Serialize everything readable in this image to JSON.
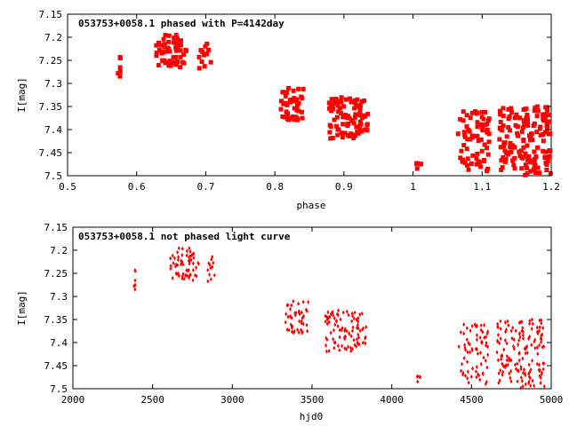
{
  "chart_data": [
    {
      "type": "scatter",
      "title": "053753+0058.1 phased with P=4142day",
      "xlabel": "phase",
      "ylabel": "I[mag]",
      "xlim": [
        0.5,
        1.2
      ],
      "ylim": [
        7.15,
        7.5
      ],
      "y_inverted": true,
      "xticks": [
        "0.5",
        "0.6",
        "0.7",
        "0.8",
        "0.9",
        "1",
        "1.1",
        "1.2"
      ],
      "yticks": [
        "7.15",
        "7.2",
        "7.25",
        "7.3",
        "7.35",
        "7.4",
        "7.45",
        "7.5"
      ],
      "marker": "filled-square",
      "color": "#ff0000",
      "clusters": [
        {
          "x": [
            0.572,
            0.578
          ],
          "y": [
            7.225,
            7.285
          ],
          "n": 6
        },
        {
          "x": [
            0.628,
            0.672
          ],
          "y": [
            7.195,
            7.265
          ],
          "n": 60
        },
        {
          "x": [
            0.688,
            0.708
          ],
          "y": [
            7.205,
            7.275
          ],
          "n": 12
        },
        {
          "x": [
            0.808,
            0.842
          ],
          "y": [
            7.31,
            7.38
          ],
          "n": 45
        },
        {
          "x": [
            0.878,
            0.935
          ],
          "y": [
            7.33,
            7.42
          ],
          "n": 90
        },
        {
          "x": [
            1.002,
            1.012
          ],
          "y": [
            7.46,
            7.49
          ],
          "n": 5
        },
        {
          "x": [
            1.065,
            1.112
          ],
          "y": [
            7.36,
            7.49
          ],
          "n": 70
        },
        {
          "x": [
            1.125,
            1.2
          ],
          "y": [
            7.35,
            7.5
          ],
          "n": 150
        }
      ]
    },
    {
      "type": "scatter",
      "title": "053753+0058.1 not phased light curve",
      "xlabel": "hjd0",
      "ylabel": "I[mag]",
      "xlim": [
        2000,
        5000
      ],
      "ylim": [
        7.15,
        7.5
      ],
      "y_inverted": true,
      "xticks": [
        "2000",
        "2500",
        "3000",
        "3500",
        "4000",
        "4500",
        "5000"
      ],
      "yticks": [
        "7.15",
        "7.2",
        "7.25",
        "7.3",
        "7.35",
        "7.4",
        "7.45",
        "7.5"
      ],
      "marker": "small-diamond",
      "color": "#ff0000",
      "clusters": [
        {
          "x": [
            2380,
            2395
          ],
          "y": [
            7.225,
            7.285
          ],
          "n": 6
        },
        {
          "x": [
            2610,
            2790
          ],
          "y": [
            7.195,
            7.265
          ],
          "n": 60
        },
        {
          "x": [
            2840,
            2890
          ],
          "y": [
            7.205,
            7.275
          ],
          "n": 12
        },
        {
          "x": [
            3330,
            3480
          ],
          "y": [
            7.31,
            7.38
          ],
          "n": 45
        },
        {
          "x": [
            3580,
            3840
          ],
          "y": [
            7.33,
            7.42
          ],
          "n": 90
        },
        {
          "x": [
            4150,
            4180
          ],
          "y": [
            7.46,
            7.49
          ],
          "n": 5
        },
        {
          "x": [
            4420,
            4610
          ],
          "y": [
            7.36,
            7.49
          ],
          "n": 70
        },
        {
          "x": [
            4660,
            4960
          ],
          "y": [
            7.35,
            7.5
          ],
          "n": 150
        }
      ]
    }
  ]
}
